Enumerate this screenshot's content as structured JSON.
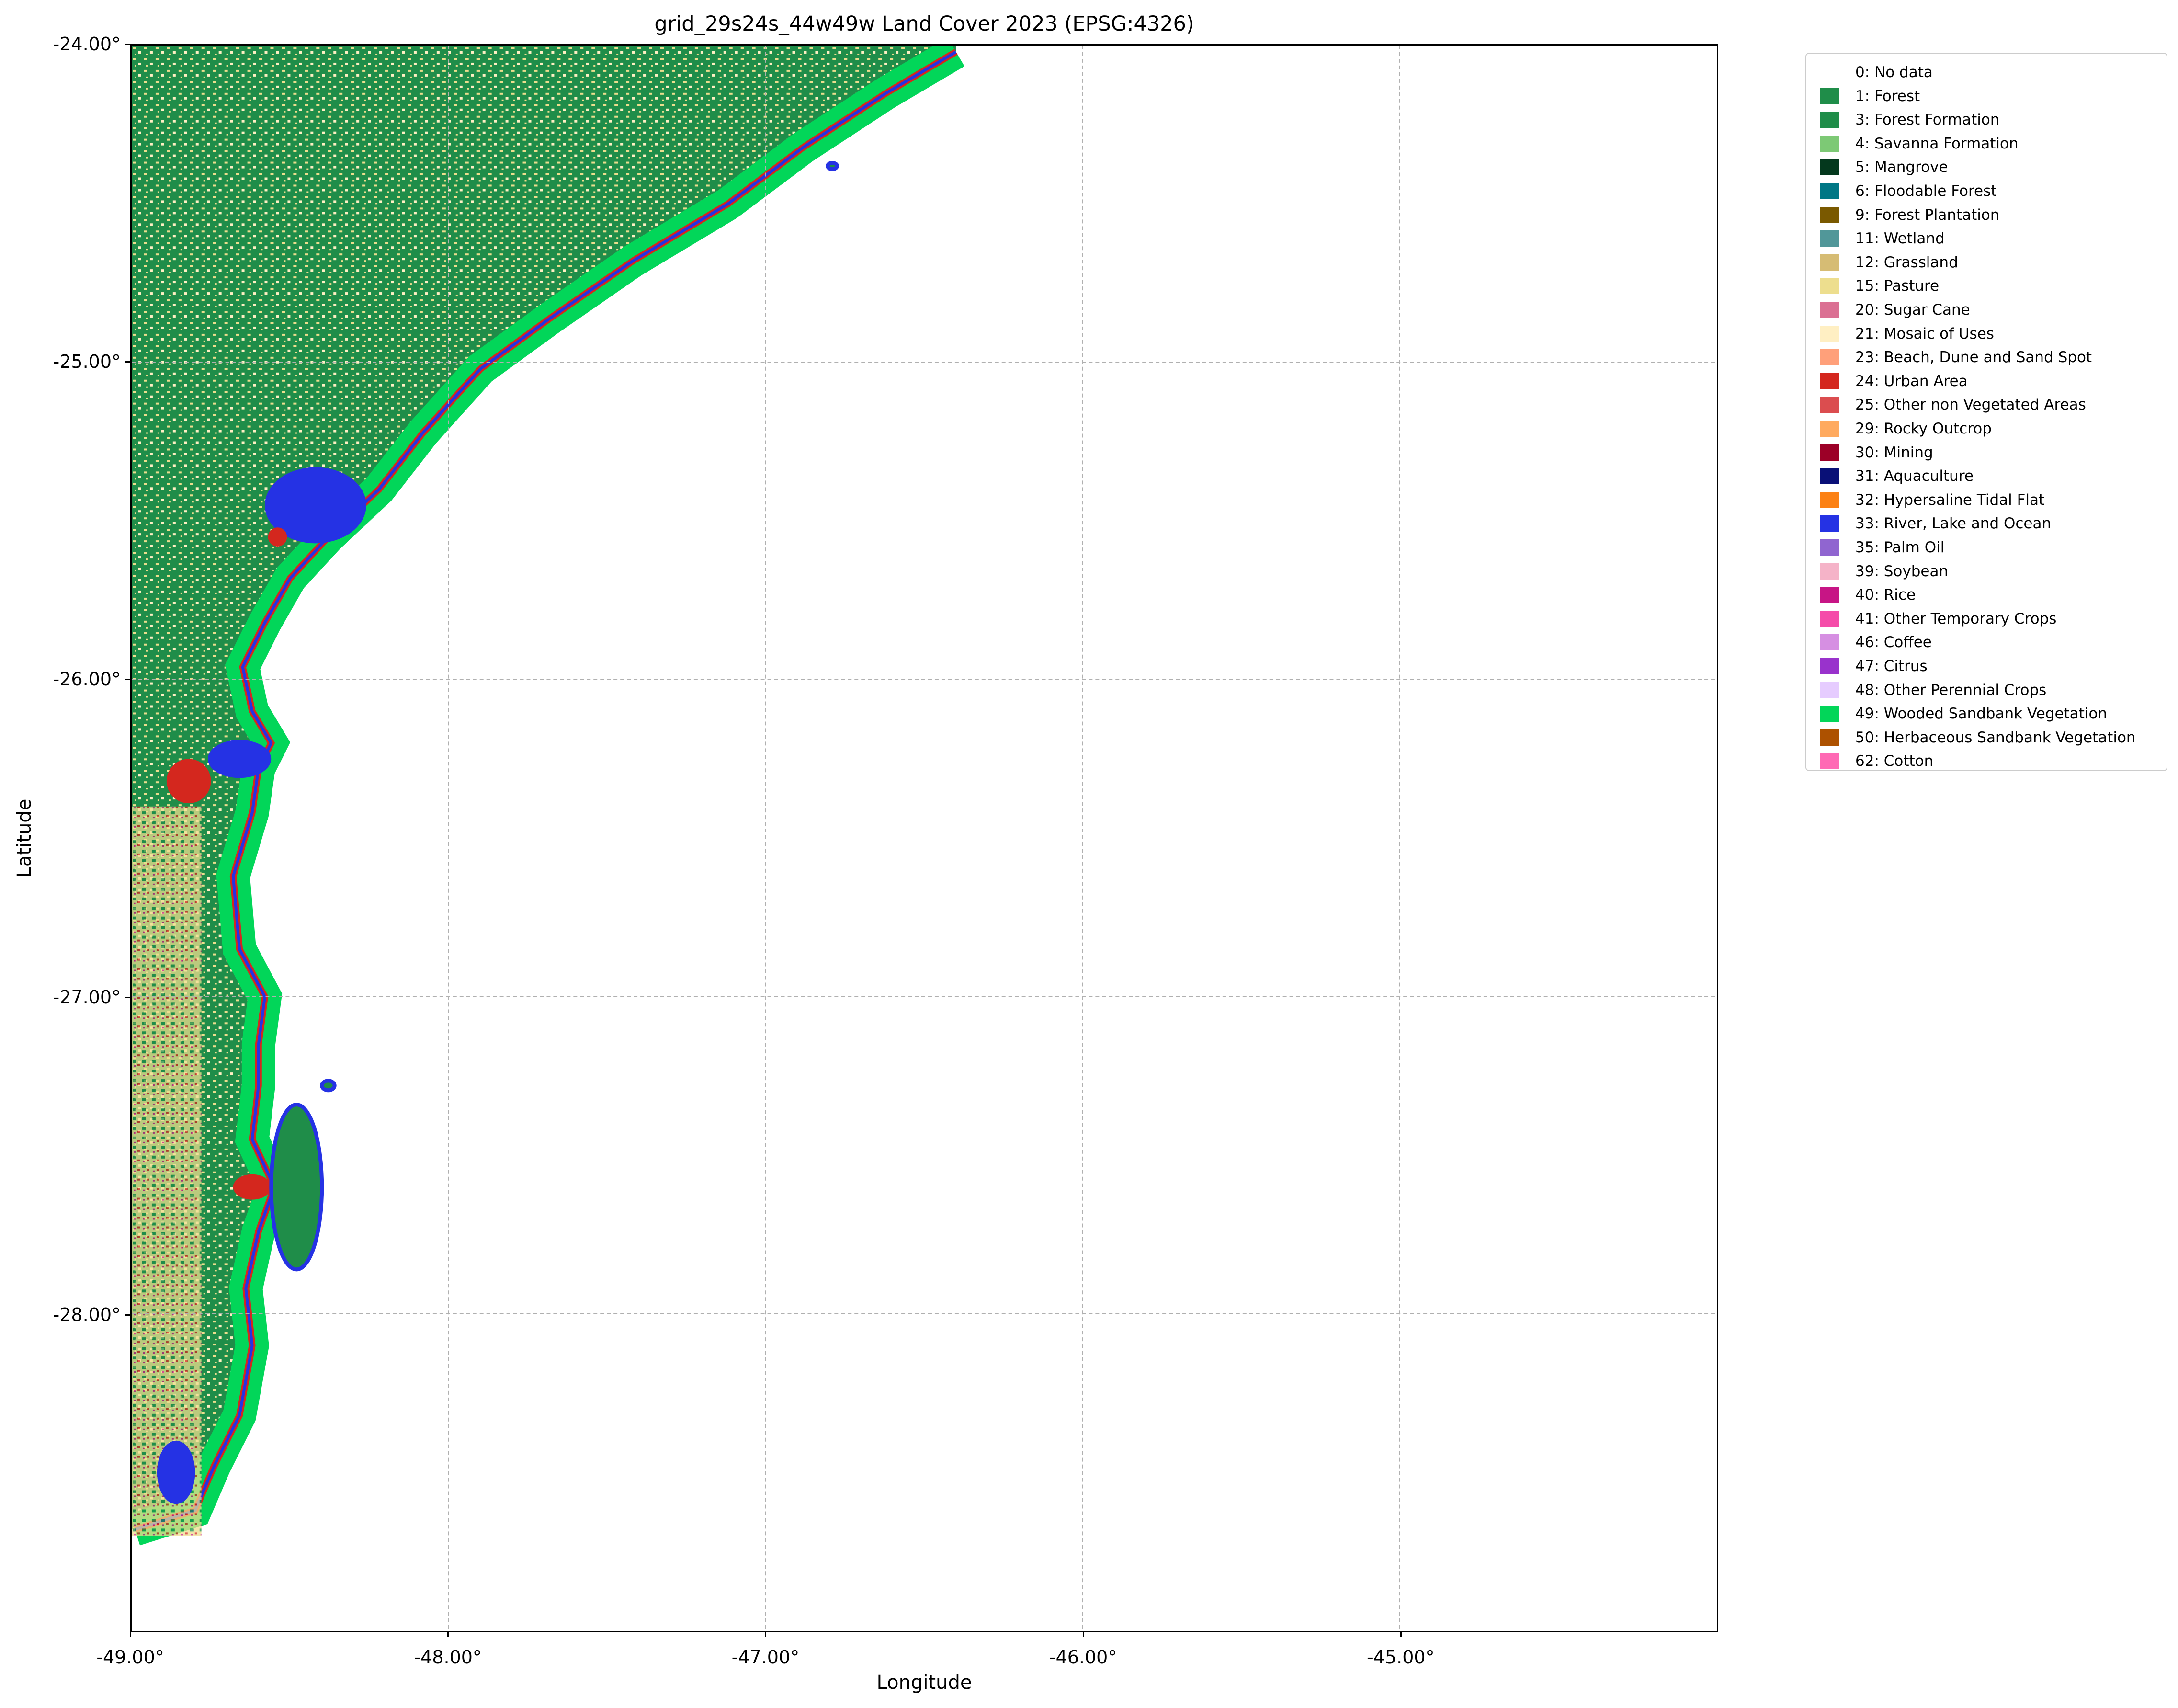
{
  "title": "grid_29s24s_44w49w Land Cover 2023 (EPSG:4326)",
  "axes": {
    "xlabel": "Longitude",
    "ylabel": "Latitude",
    "xlim": [
      -49.0,
      -44.0
    ],
    "ylim": [
      -29.0,
      -24.0
    ],
    "xticks": [
      {
        "value": -49.0,
        "label": "-49.00°"
      },
      {
        "value": -48.0,
        "label": "-48.00°"
      },
      {
        "value": -47.0,
        "label": "-47.00°"
      },
      {
        "value": -46.0,
        "label": "-46.00°"
      },
      {
        "value": -45.0,
        "label": "-45.00°"
      }
    ],
    "yticks": [
      {
        "value": -24.0,
        "label": "-24.00°"
      },
      {
        "value": -25.0,
        "label": "-25.00°"
      },
      {
        "value": -26.0,
        "label": "-26.00°"
      },
      {
        "value": -27.0,
        "label": "-27.00°"
      },
      {
        "value": -28.0,
        "label": "-28.00°"
      }
    ],
    "grid": true
  },
  "legend": {
    "placement": "outside-right-top",
    "items": [
      {
        "label": "0: No data",
        "color": "#ffffff"
      },
      {
        "label": "1: Forest",
        "color": "#1f8d49"
      },
      {
        "label": "3: Forest Formation",
        "color": "#1f8d49"
      },
      {
        "label": "4: Savanna Formation",
        "color": "#7dc975"
      },
      {
        "label": "5: Mangrove",
        "color": "#04381d"
      },
      {
        "label": "6: Floodable Forest",
        "color": "#007785"
      },
      {
        "label": "9: Forest Plantation",
        "color": "#7a5900"
      },
      {
        "label": "11: Wetland",
        "color": "#519799"
      },
      {
        "label": "12: Grassland",
        "color": "#d6bc74"
      },
      {
        "label": "15: Pasture",
        "color": "#edde8e"
      },
      {
        "label": "20: Sugar Cane",
        "color": "#db7093"
      },
      {
        "label": "21: Mosaic of Uses",
        "color": "#ffefc3"
      },
      {
        "label": "23: Beach, Dune and Sand Spot",
        "color": "#ffa07a"
      },
      {
        "label": "24: Urban Area",
        "color": "#d4271e"
      },
      {
        "label": "25: Other non Vegetated Areas",
        "color": "#db4d4f"
      },
      {
        "label": "29: Rocky Outcrop",
        "color": "#ffaa5f"
      },
      {
        "label": "30: Mining",
        "color": "#9c0027"
      },
      {
        "label": "31: Aquaculture",
        "color": "#091077"
      },
      {
        "label": "32: Hypersaline Tidal Flat",
        "color": "#fc8114"
      },
      {
        "label": "33: River, Lake and Ocean",
        "color": "#2532e4"
      },
      {
        "label": "35: Palm Oil",
        "color": "#9065d0"
      },
      {
        "label": "39: Soybean",
        "color": "#f5b3c8"
      },
      {
        "label": "40: Rice",
        "color": "#c71585"
      },
      {
        "label": "41: Other Temporary Crops",
        "color": "#f54ca9"
      },
      {
        "label": "46: Coffee",
        "color": "#d68fe2"
      },
      {
        "label": "47: Citrus",
        "color": "#9932cc"
      },
      {
        "label": "48: Other Perennial Crops",
        "color": "#e6ccff"
      },
      {
        "label": "49: Wooded Sandbank Vegetation",
        "color": "#02d659"
      },
      {
        "label": "50: Herbaceous Sandbank Vegetation",
        "color": "#ad5100"
      },
      {
        "label": "62: Cotton",
        "color": "#ff69b4"
      }
    ]
  },
  "map_data": {
    "coastline": [
      [
        -48.99,
        -28.68
      ],
      [
        -48.8,
        -28.62
      ],
      [
        -48.74,
        -28.48
      ],
      [
        -48.66,
        -28.32
      ],
      [
        -48.62,
        -28.1
      ],
      [
        -48.64,
        -27.92
      ],
      [
        -48.6,
        -27.74
      ],
      [
        -48.55,
        -27.6
      ],
      [
        -48.62,
        -27.45
      ],
      [
        -48.6,
        -27.28
      ],
      [
        -48.6,
        -27.15
      ],
      [
        -48.58,
        -27.0
      ],
      [
        -48.66,
        -26.85
      ],
      [
        -48.68,
        -26.62
      ],
      [
        -48.62,
        -26.42
      ],
      [
        -48.6,
        -26.28
      ],
      [
        -48.56,
        -26.2
      ],
      [
        -48.62,
        -26.1
      ],
      [
        -48.65,
        -25.96
      ],
      [
        -48.58,
        -25.82
      ],
      [
        -48.5,
        -25.68
      ],
      [
        -48.38,
        -25.55
      ],
      [
        -48.22,
        -25.4
      ],
      [
        -48.08,
        -25.22
      ],
      [
        -47.9,
        -25.02
      ],
      [
        -47.68,
        -24.86
      ],
      [
        -47.42,
        -24.68
      ],
      [
        -47.12,
        -24.5
      ],
      [
        -46.88,
        -24.32
      ],
      [
        -46.62,
        -24.15
      ],
      [
        -46.4,
        -24.02
      ]
    ],
    "islands": [
      {
        "lon": -48.48,
        "lat": -27.6,
        "rx": 0.08,
        "ry": 0.26
      },
      {
        "lon": -46.79,
        "lat": -24.38,
        "rx": 0.015,
        "ry": 0.01
      },
      {
        "lon": -48.38,
        "lat": -27.28,
        "rx": 0.02,
        "ry": 0.015
      }
    ],
    "bays": [
      {
        "lon": -48.42,
        "lat": -25.45,
        "rx": 0.16,
        "ry": 0.12
      },
      {
        "lon": -48.66,
        "lat": -26.25,
        "rx": 0.1,
        "ry": 0.06
      },
      {
        "lon": -48.86,
        "lat": -28.5,
        "rx": 0.06,
        "ry": 0.1
      }
    ],
    "urban": [
      {
        "lon": -48.82,
        "lat": -26.32,
        "rx": 0.07,
        "ry": 0.07
      },
      {
        "lon": -48.62,
        "lat": -27.6,
        "rx": 0.06,
        "ry": 0.04
      },
      {
        "lon": -48.54,
        "lat": -25.55,
        "rx": 0.03,
        "ry": 0.03
      }
    ]
  }
}
